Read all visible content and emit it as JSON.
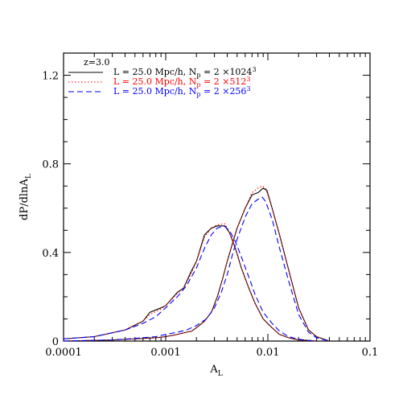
{
  "chart_data": {
    "type": "line",
    "title": "",
    "xlabel": "A",
    "xlabel_sub": "L",
    "ylabel": "dP/dlnA",
    "ylabel_sub": "L",
    "xscale": "log",
    "xlim": [
      0.0001,
      0.1
    ],
    "ylim": [
      0,
      1.3
    ],
    "xticks": [
      0.0001,
      0.001,
      0.01,
      0.1
    ],
    "xtick_labels": [
      "0.0001",
      "0.001",
      "0.01",
      "0.1"
    ],
    "yticks": [
      0,
      0.4,
      0.8,
      1.2
    ],
    "ytick_labels": [
      "0",
      "0.4",
      "0.8",
      "1.2"
    ],
    "grid": false,
    "legend": {
      "placement": "top-left",
      "title": "z=3.0",
      "entries": [
        {
          "prefix": "L = 25.0 Mpc/h, N",
          "sub": "p",
          "mid": " = 2 ×1024",
          "sup": "3",
          "color": "#000000",
          "style": "solid"
        },
        {
          "prefix": "L = 25.0 Mpc/h, N",
          "sub": "p",
          "mid": " = 2 ×512",
          "sup": "3",
          "color": "#ff0000",
          "style": "dotted"
        },
        {
          "prefix": "L = 25.0 Mpc/h, N",
          "sub": "p",
          "mid": " = 2 ×256",
          "sup": "3",
          "color": "#0000ff",
          "style": "dashed"
        }
      ]
    },
    "series": [
      {
        "color": "#000000",
        "style": "solid",
        "group": "1024^3",
        "x": [
          0.0001,
          0.0002,
          0.0004,
          0.0006,
          0.0007,
          0.0009,
          0.001,
          0.0013,
          0.0015,
          0.0018,
          0.002,
          0.0024,
          0.0028,
          0.0032,
          0.0038,
          0.0042,
          0.0048,
          0.0055,
          0.0065,
          0.0075,
          0.009,
          0.011,
          0.013,
          0.016,
          0.02,
          0.025,
          0.03
        ],
        "y": [
          0.01,
          0.02,
          0.05,
          0.09,
          0.13,
          0.15,
          0.16,
          0.22,
          0.24,
          0.32,
          0.36,
          0.48,
          0.51,
          0.52,
          0.52,
          0.49,
          0.42,
          0.33,
          0.24,
          0.17,
          0.1,
          0.06,
          0.03,
          0.015,
          0.005,
          0.003,
          0.0
        ]
      },
      {
        "color": "#000000",
        "style": "solid",
        "group": "1024^3",
        "x": [
          0.0001,
          0.0003,
          0.0005,
          0.0008,
          0.001,
          0.0013,
          0.0016,
          0.0018,
          0.002,
          0.0024,
          0.0028,
          0.0032,
          0.0036,
          0.004,
          0.0045,
          0.005,
          0.006,
          0.007,
          0.008,
          0.009,
          0.0098,
          0.011,
          0.013,
          0.016,
          0.02,
          0.025,
          0.03,
          0.04
        ],
        "y": [
          0.0,
          0.005,
          0.01,
          0.015,
          0.02,
          0.03,
          0.04,
          0.045,
          0.06,
          0.09,
          0.13,
          0.2,
          0.28,
          0.36,
          0.44,
          0.51,
          0.6,
          0.66,
          0.67,
          0.69,
          0.68,
          0.6,
          0.48,
          0.32,
          0.15,
          0.05,
          0.02,
          0.0
        ]
      },
      {
        "color": "#ff0000",
        "style": "dotted",
        "group": "512^3",
        "x": [
          0.0001,
          0.0002,
          0.0004,
          0.0006,
          0.0007,
          0.0009,
          0.001,
          0.0013,
          0.0015,
          0.0018,
          0.002,
          0.0024,
          0.0028,
          0.0032,
          0.0038,
          0.0042,
          0.0048,
          0.0055,
          0.0065,
          0.0075,
          0.009,
          0.011,
          0.013,
          0.016,
          0.02,
          0.025,
          0.03
        ],
        "y": [
          0.01,
          0.02,
          0.05,
          0.09,
          0.12,
          0.145,
          0.16,
          0.215,
          0.24,
          0.31,
          0.36,
          0.47,
          0.51,
          0.525,
          0.53,
          0.49,
          0.42,
          0.33,
          0.24,
          0.17,
          0.1,
          0.06,
          0.03,
          0.015,
          0.005,
          0.003,
          0.0
        ]
      },
      {
        "color": "#ff0000",
        "style": "dotted",
        "group": "512^3",
        "x": [
          0.0001,
          0.0003,
          0.0005,
          0.0008,
          0.001,
          0.0013,
          0.0016,
          0.0018,
          0.002,
          0.0024,
          0.0028,
          0.0032,
          0.0036,
          0.004,
          0.0045,
          0.005,
          0.006,
          0.007,
          0.008,
          0.0088,
          0.0095,
          0.011,
          0.013,
          0.016,
          0.02,
          0.025,
          0.03,
          0.04
        ],
        "y": [
          0.0,
          0.005,
          0.01,
          0.015,
          0.02,
          0.03,
          0.04,
          0.045,
          0.06,
          0.09,
          0.13,
          0.2,
          0.28,
          0.36,
          0.44,
          0.51,
          0.6,
          0.67,
          0.69,
          0.7,
          0.69,
          0.6,
          0.48,
          0.32,
          0.15,
          0.05,
          0.02,
          0.0
        ]
      },
      {
        "color": "#0000ff",
        "style": "dashed",
        "group": "256^3",
        "x": [
          0.0001,
          0.0002,
          0.0004,
          0.0006,
          0.0008,
          0.001,
          0.0013,
          0.0016,
          0.002,
          0.0024,
          0.0028,
          0.0032,
          0.0037,
          0.0042,
          0.0048,
          0.0055,
          0.0065,
          0.0075,
          0.009,
          0.011,
          0.013,
          0.016,
          0.02,
          0.025,
          0.03
        ],
        "y": [
          0.01,
          0.02,
          0.05,
          0.08,
          0.11,
          0.15,
          0.2,
          0.25,
          0.33,
          0.42,
          0.48,
          0.51,
          0.52,
          0.5,
          0.45,
          0.38,
          0.29,
          0.21,
          0.13,
          0.08,
          0.045,
          0.02,
          0.008,
          0.003,
          0.0
        ]
      },
      {
        "color": "#0000ff",
        "style": "dashed",
        "group": "256^3",
        "x": [
          0.0001,
          0.0003,
          0.0005,
          0.0008,
          0.001,
          0.0013,
          0.0016,
          0.002,
          0.0025,
          0.003,
          0.0035,
          0.004,
          0.0045,
          0.005,
          0.006,
          0.007,
          0.008,
          0.0088,
          0.0095,
          0.011,
          0.013,
          0.016,
          0.02,
          0.025,
          0.03,
          0.04
        ],
        "y": [
          0.0,
          0.005,
          0.012,
          0.02,
          0.03,
          0.04,
          0.05,
          0.07,
          0.1,
          0.15,
          0.22,
          0.3,
          0.39,
          0.46,
          0.56,
          0.62,
          0.64,
          0.65,
          0.63,
          0.55,
          0.42,
          0.27,
          0.12,
          0.04,
          0.015,
          0.0
        ]
      }
    ]
  }
}
